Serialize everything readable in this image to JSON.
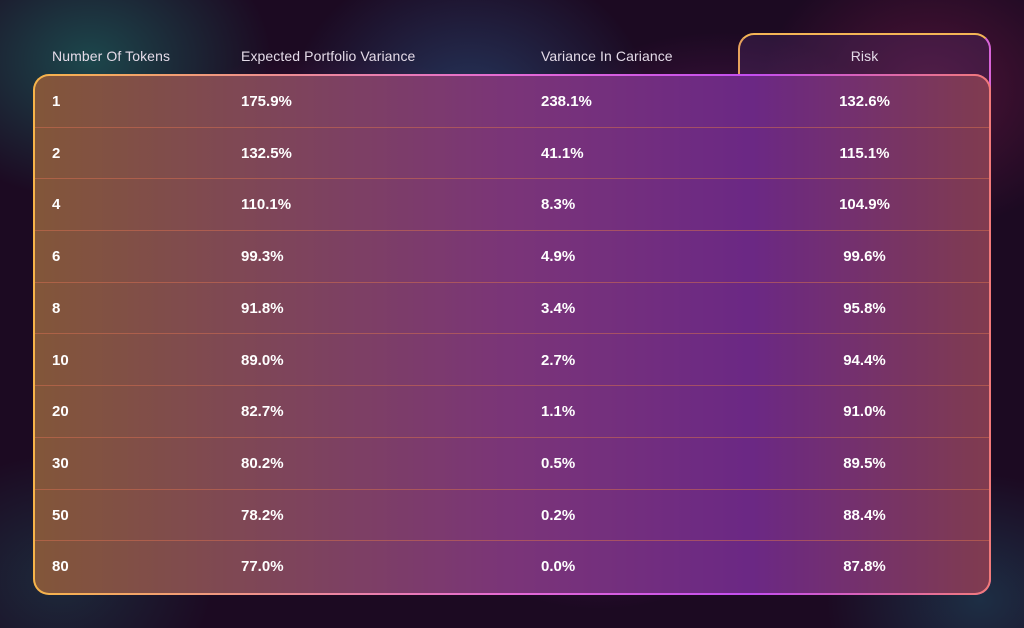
{
  "chart_data": {
    "type": "table",
    "columns": [
      "Number Of Tokens",
      "Expected Portfolio Variance",
      "Variance In Cariance",
      "Risk"
    ],
    "rows": [
      [
        "1",
        "175.9%",
        "238.1%",
        "132.6%"
      ],
      [
        "2",
        "132.5%",
        "41.1%",
        "115.1%"
      ],
      [
        "4",
        "110.1%",
        "8.3%",
        "104.9%"
      ],
      [
        "6",
        "99.3%",
        "4.9%",
        "99.6%"
      ],
      [
        "8",
        "91.8%",
        "3.4%",
        "95.8%"
      ],
      [
        "10",
        "89.0%",
        "2.7%",
        "94.4%"
      ],
      [
        "20",
        "82.7%",
        "1.1%",
        "91.0%"
      ],
      [
        "30",
        "80.2%",
        "0.5%",
        "89.5%"
      ],
      [
        "50",
        "78.2%",
        "0.2%",
        "88.4%"
      ],
      [
        "80",
        "77.0%",
        "0.0%",
        "87.8%"
      ]
    ],
    "highlight_column": "Risk",
    "colors": {
      "border_warm": "#f7b44a",
      "border_pink": "#e56ad6",
      "row_divider": "#d26e50",
      "background": "#1c0a22"
    }
  }
}
